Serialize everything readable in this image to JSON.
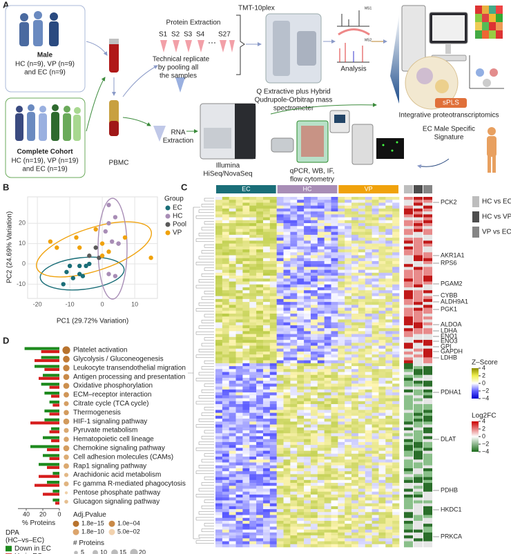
{
  "panel_letters": [
    "A",
    "B",
    "C",
    "D"
  ],
  "panel_a": {
    "male": {
      "title": "Male",
      "lines": [
        "HC (n=9), VP (n=9)",
        "and EC (n=9)"
      ]
    },
    "cohort": {
      "title": "Complete Cohort",
      "lines": [
        "HC (n=19), VP (n=19)",
        "and EC (n=19)"
      ]
    },
    "pbmc": "PBMC",
    "protein_extraction": "Protein Extraction",
    "samples": [
      "S1",
      "S2",
      "S3",
      "S4",
      "S27"
    ],
    "tmt": "TMT-10plex",
    "replicate": [
      "Technical replicate",
      "by pooling all",
      "the samples"
    ],
    "ms": [
      "Q Extractive plus Hybrid",
      "Qudrupole-Orbitrap mass",
      "spectrometer"
    ],
    "analysis": "Analysis",
    "ms_labels": [
      "MS1",
      "MS2"
    ],
    "rna": [
      "RNA",
      "Extraction"
    ],
    "illumina": [
      "Illumina",
      "HiSeq/NovaSeq"
    ],
    "validation": [
      "qPCR, WB, IF,",
      "flow cytometry"
    ],
    "integrative": "Integrative proteotranscriptomics",
    "spls": "sPLS",
    "signature": [
      "EC Male Specific",
      "Signature"
    ]
  },
  "chart_data": [
    {
      "type": "scatter",
      "xlabel": "PC1 (29.72% Variation)",
      "ylabel": "PC2 (24.69% Variation)",
      "legend_title": "Group",
      "xlim": [
        -23,
        17
      ],
      "ylim": [
        -17,
        33
      ],
      "xticks": [
        -20,
        -10,
        0,
        10
      ],
      "yticks": [
        -10,
        0,
        10,
        20
      ],
      "grid": true,
      "series": [
        {
          "name": "EC",
          "color": "#1a6e78",
          "x": [
            -12,
            -11,
            -10,
            -7,
            -6,
            -4,
            -5,
            -7,
            -9
          ],
          "values": [
            -10,
            -4,
            -1,
            -5,
            -6,
            0,
            -1,
            -1,
            -7
          ]
        },
        {
          "name": "HC",
          "color": "#a88db6",
          "x": [
            2,
            4,
            2,
            1,
            3,
            5,
            5,
            4,
            2
          ],
          "values": [
            29,
            23,
            20,
            16,
            11,
            10,
            10,
            -6,
            -5
          ]
        },
        {
          "name": "Pool",
          "color": "#5a5a5a",
          "x": [
            -2,
            -1,
            -4
          ],
          "values": [
            8,
            3,
            4
          ]
        },
        {
          "name": "VP",
          "color": "#f0a20c",
          "x": [
            -16,
            -14,
            -8,
            -7,
            -2,
            0,
            2,
            0,
            7,
            15
          ],
          "values": [
            11,
            8,
            13,
            8,
            17,
            10,
            6,
            4,
            13,
            3
          ]
        }
      ]
    },
    {
      "type": "bar",
      "orientation": "horizontal",
      "xlabel": "% Proteins",
      "xlim": [
        50,
        0
      ],
      "xticks": [
        40,
        20,
        0
      ],
      "categories": [
        "Platelet activation",
        "Glycolysis / Gluconeogenesis",
        "Leukocyte transendothelial migration",
        "Antigen processing and presentation",
        "Oxidative phosphorylation",
        "ECM–receptor interaction",
        "Citrate cycle (TCA cycle)",
        "Thermogenesis",
        "HIF-1 signaling pathway",
        "Pyruvate metabolism",
        "Hematopoietic cell lineage",
        "Chemokine signaling pathway",
        "Cell adhesion molecules (CAMs)",
        "Rap1 signaling pathway",
        "Arachidonic acid metabolism",
        "Fc gamma R-mediated phagocytosis",
        "Pentose phosphate pathway",
        "Glucagon signaling pathway"
      ],
      "legend_title": [
        "DPA",
        "(HC–vs–EC)"
      ],
      "series": [
        {
          "name": "Down in EC",
          "color": "#1e8a1e",
          "values": [
            42,
            22,
            30,
            20,
            22,
            18,
            12,
            18,
            18,
            10,
            20,
            35,
            20,
            25,
            8,
            15,
            8,
            8
          ]
        },
        {
          "name": "Up in EC",
          "color": "#d61c1c",
          "values": [
            22,
            30,
            18,
            25,
            12,
            10,
            8,
            12,
            35,
            12,
            10,
            15,
            12,
            15,
            25,
            30,
            20,
            5
          ]
        }
      ],
      "dots": {
        "size_title": "# Proteins",
        "color_title": "Adj.Pvalue",
        "values": [
          20,
          15,
          14,
          12,
          12,
          10,
          8,
          9,
          12,
          8,
          9,
          12,
          9,
          10,
          6,
          8,
          3,
          5
        ],
        "colors": [
          "#b8732e",
          "#c07a35",
          "#c68440",
          "#c98a48",
          "#cc8f4e",
          "#d09658",
          "#d59f64",
          "#d39b5e",
          "#d29a5c",
          "#daa86f",
          "#d8a46a",
          "#d49d60",
          "#dcac74",
          "#dba970",
          "#e2b886",
          "#e0b480",
          "#f0d0a8",
          "#e6bf90"
        ],
        "color_labels": [
          "1.8e−15",
          "1.0e−04",
          "1.8e−10",
          "5.0e−02"
        ],
        "legend_colors": [
          "#b8732e",
          "#c98a48",
          "#dca46c",
          "#f2d2ae"
        ],
        "size_ticks": [
          5,
          10,
          15,
          20
        ]
      }
    },
    {
      "type": "heatmap",
      "groups": [
        {
          "name": "EC",
          "color": "#1a6e78"
        },
        {
          "name": "HC",
          "color": "#a88db6"
        },
        {
          "name": "VP",
          "color": "#f0a20c"
        }
      ],
      "comparisons": [
        {
          "name": "HC vs EC",
          "color": "#bdbdbd"
        },
        {
          "name": "HC vs VP",
          "color": "#4d4d4d"
        },
        {
          "name": "VP vs EC",
          "color": "#858585"
        }
      ],
      "genes": [
        "PCK2",
        "AKR1A1",
        "RPS6",
        "PGAM2",
        "CYBB",
        "ALDH9A1",
        "PGK1",
        "ALDOA",
        "LDHA",
        "ENO1",
        "ENO3",
        "GPI",
        "GAPDH",
        "LDHB",
        "PDHA1",
        "DLAT",
        "PDHB",
        "HKDC1",
        "PRKCA"
      ],
      "zscore": {
        "title": "Z–Score",
        "ticks": [
          4,
          2,
          0,
          {
            "value": -2,
            "label": "−2"
          },
          {
            "value": -4,
            "label": "−4"
          }
        ]
      },
      "log2fc": {
        "title": "Log2FC",
        "ticks": [
          4,
          2,
          0,
          {
            "value": -2,
            "label": "−2"
          },
          {
            "value": -4,
            "label": "−4"
          }
        ]
      }
    }
  ]
}
